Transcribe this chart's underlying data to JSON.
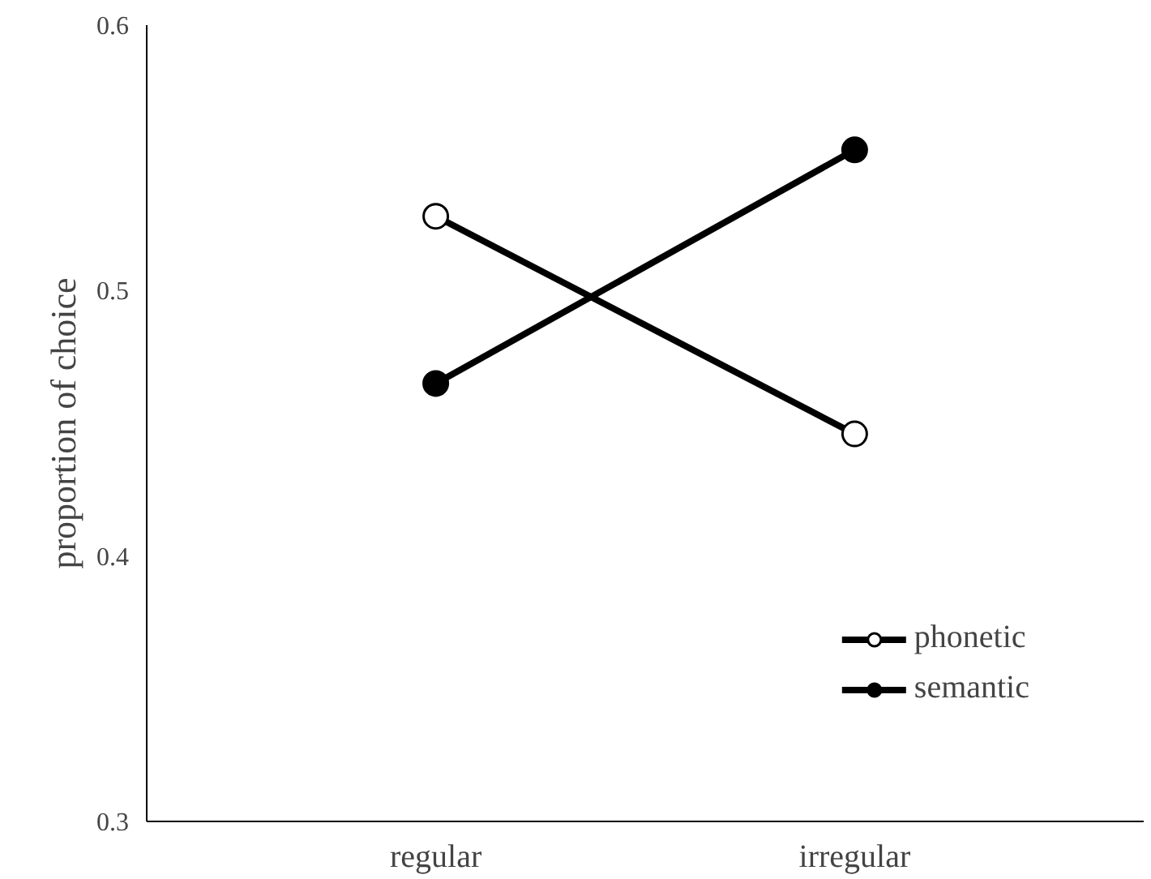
{
  "chart_data": {
    "type": "line",
    "categories": [
      "regular",
      "irregular"
    ],
    "ylabel": "proportion of choice",
    "ylim": [
      0.3,
      0.6
    ],
    "yticks": [
      0.3,
      0.4,
      0.5,
      0.6
    ],
    "grid": false,
    "legend": "bottom right",
    "marker": "circle",
    "line_style": "solid",
    "series": [
      {
        "name": "phonetic",
        "color": "#000000",
        "colors": [
          "#ffffff",
          "#ffffff"
        ],
        "values": [
          0.528,
          0.446
        ]
      },
      {
        "name": "semantic",
        "color": "#000000",
        "values": [
          0.465,
          0.553
        ]
      }
    ]
  }
}
